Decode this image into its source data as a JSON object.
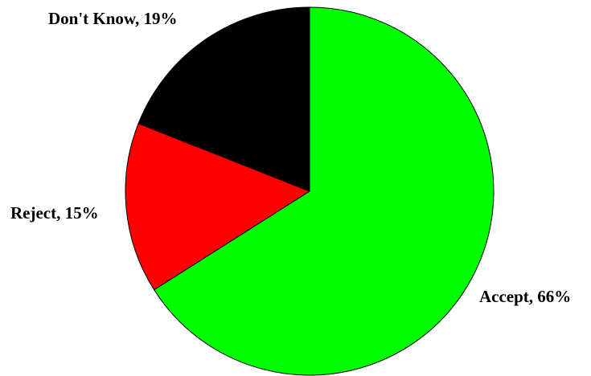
{
  "chart_data": {
    "type": "pie",
    "slices": [
      {
        "label": "Accept, 66%",
        "category": "Accept",
        "value": 66,
        "color": "#00ff00"
      },
      {
        "label": "Reject, 15%",
        "category": "Reject",
        "value": 15,
        "color": "#ff0000"
      },
      {
        "label": "Don't Know, 19%",
        "category": "Don't Know",
        "value": 19,
        "color": "#000000"
      }
    ],
    "start_angle": "12 o'clock",
    "direction": "clockwise",
    "legend": "none",
    "border_color": "#000000"
  }
}
